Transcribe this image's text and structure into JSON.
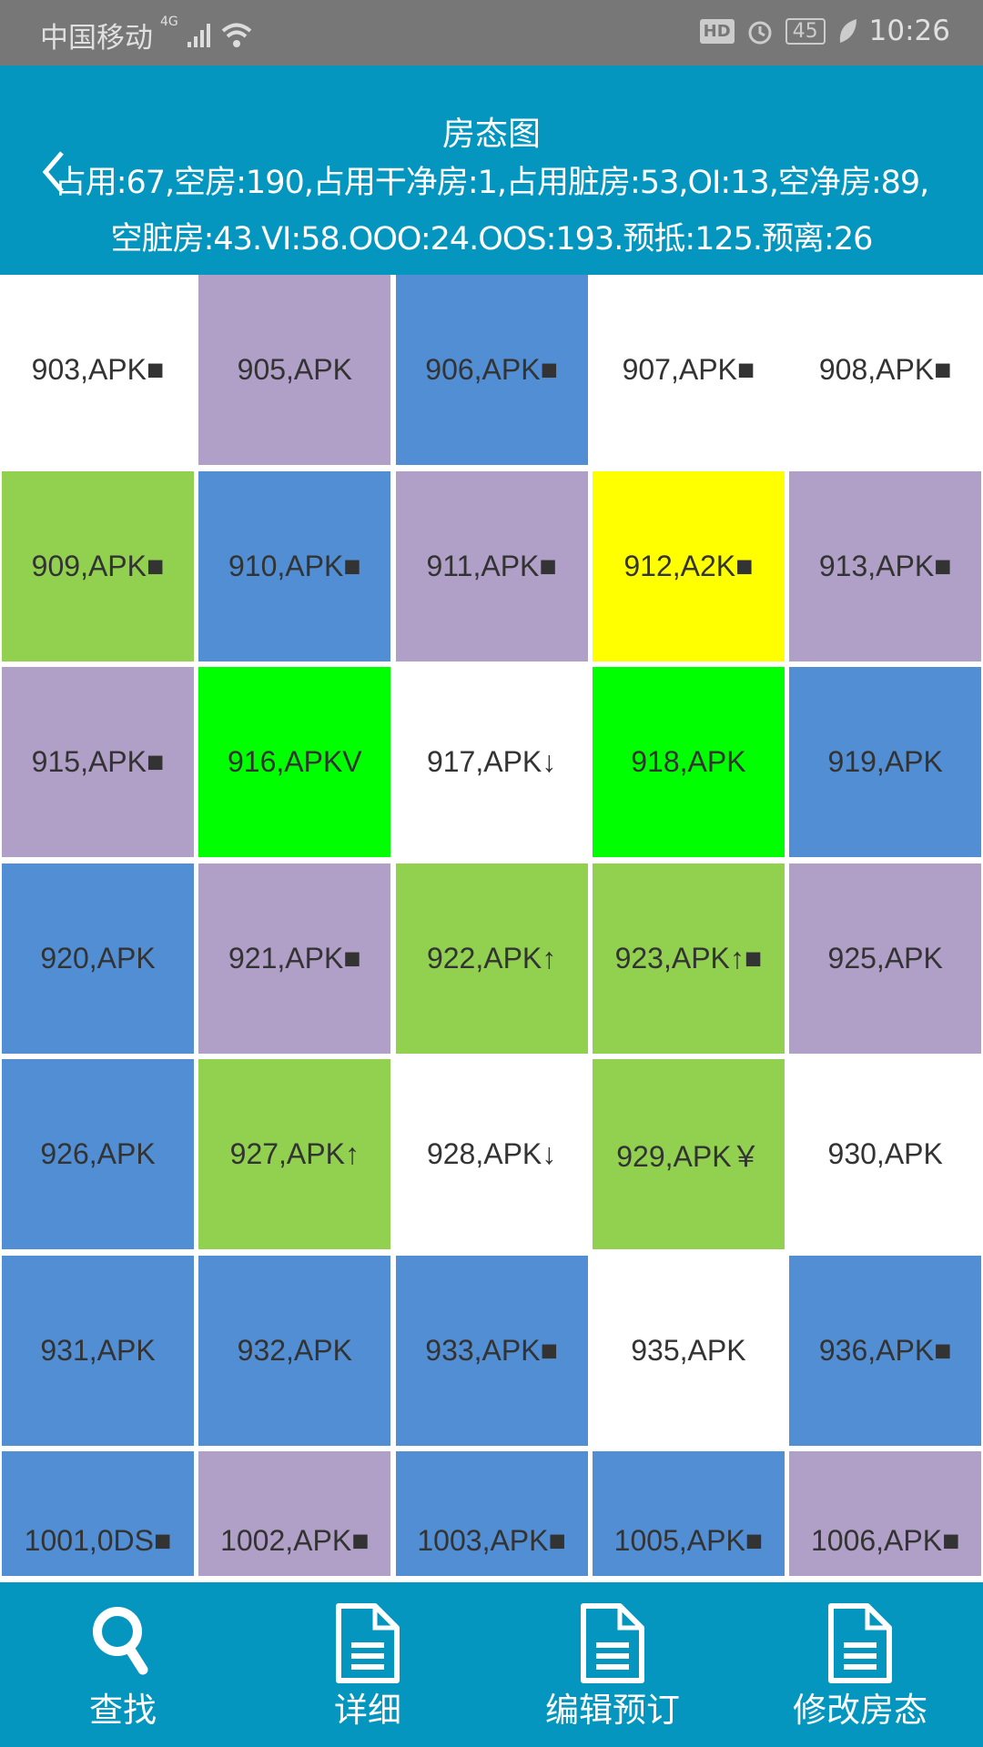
{
  "status_bar": {
    "carrier": "中国移动",
    "network": "4G",
    "battery": "45",
    "time": "10:26",
    "hd": "HD"
  },
  "header": {
    "title": "房态图",
    "summary_line1": "占用:67,空房:190,占用干净房:1,占用脏房:53,OI:13,空净房:89,",
    "summary_line2": "空脏房:43.VI:58.OOO:24.OOS:193.预抵:125.预离:26"
  },
  "colors": {
    "white": "#ffffff",
    "lavender": "#b09fc6",
    "blue": "#528ed3",
    "green": "#92d050",
    "yellow": "#ffff00",
    "bright_green": "#00ff00",
    "bar": "#0596bf"
  },
  "rooms": [
    {
      "label": "903,APK■",
      "color": "white"
    },
    {
      "label": "905,APK",
      "color": "lavender"
    },
    {
      "label": "906,APK■",
      "color": "blue"
    },
    {
      "label": "907,APK■",
      "color": "white"
    },
    {
      "label": "908,APK■",
      "color": "white"
    },
    {
      "label": "909,APK■",
      "color": "green"
    },
    {
      "label": "910,APK■",
      "color": "blue"
    },
    {
      "label": "911,APK■",
      "color": "lavender"
    },
    {
      "label": "912,A2K■",
      "color": "yellow"
    },
    {
      "label": "913,APK■",
      "color": "lavender"
    },
    {
      "label": "915,APK■",
      "color": "lavender"
    },
    {
      "label": "916,APKV",
      "color": "bright_green"
    },
    {
      "label": "917,APK↓",
      "color": "white"
    },
    {
      "label": "918,APK",
      "color": "bright_green"
    },
    {
      "label": "919,APK",
      "color": "blue"
    },
    {
      "label": "920,APK",
      "color": "blue"
    },
    {
      "label": "921,APK■",
      "color": "lavender"
    },
    {
      "label": "922,APK↑",
      "color": "green"
    },
    {
      "label": "923,APK↑■",
      "color": "green"
    },
    {
      "label": "925,APK",
      "color": "lavender"
    },
    {
      "label": "926,APK",
      "color": "blue"
    },
    {
      "label": "927,APK↑",
      "color": "green"
    },
    {
      "label": "928,APK↓",
      "color": "white"
    },
    {
      "label": "929,APK￥",
      "color": "green"
    },
    {
      "label": "930,APK",
      "color": "white"
    },
    {
      "label": "931,APK",
      "color": "blue"
    },
    {
      "label": "932,APK",
      "color": "blue"
    },
    {
      "label": "933,APK■",
      "color": "blue"
    },
    {
      "label": "935,APK",
      "color": "white"
    },
    {
      "label": "936,APK■",
      "color": "blue"
    },
    {
      "label": "1001,0DS■",
      "color": "blue"
    },
    {
      "label": "1002,APK■",
      "color": "lavender"
    },
    {
      "label": "1003,APK■",
      "color": "blue"
    },
    {
      "label": "1005,APK■",
      "color": "blue"
    },
    {
      "label": "1006,APK■",
      "color": "lavender"
    }
  ],
  "tabs": [
    {
      "label": "查找",
      "icon": "search-icon"
    },
    {
      "label": "详细",
      "icon": "document-icon"
    },
    {
      "label": "编辑预订",
      "icon": "document-icon"
    },
    {
      "label": "修改房态",
      "icon": "document-icon"
    }
  ]
}
